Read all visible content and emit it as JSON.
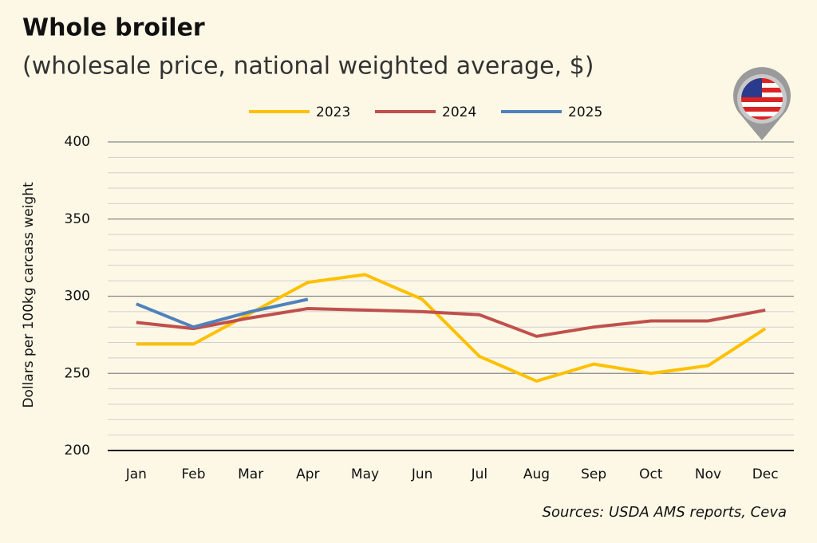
{
  "chart_data": {
    "type": "line",
    "title": "Whole broiler",
    "subtitle": "(wholesale price, national weighted average, $)",
    "y_label": "Dollars per 100kg carcass weight",
    "source": "Sources: USDA AMS reports, Ceva",
    "categories": [
      "Jan",
      "Feb",
      "Mar",
      "Apr",
      "May",
      "Jun",
      "Jul",
      "Aug",
      "Sep",
      "Oct",
      "Nov",
      "Dec"
    ],
    "series": [
      {
        "name": "2023",
        "color": "#ffc000",
        "values": [
          269,
          269,
          289,
          309,
          314,
          298,
          261,
          245,
          256,
          250,
          255,
          279
        ]
      },
      {
        "name": "2024",
        "color": "#c0504d",
        "values": [
          283,
          279,
          286,
          292,
          291,
          290,
          288,
          274,
          280,
          284,
          284,
          291
        ]
      },
      {
        "name": "2025",
        "color": "#4f81bd",
        "values": [
          295,
          280,
          290,
          298,
          null,
          null,
          null,
          null,
          null,
          null,
          null,
          null
        ]
      }
    ],
    "ylim": [
      200,
      400
    ],
    "yticks": [
      200,
      250,
      300,
      350,
      400
    ],
    "minor_yticks": [
      210,
      220,
      230,
      240,
      260,
      270,
      280,
      290,
      310,
      320,
      330,
      340,
      360,
      370,
      380,
      390
    ],
    "grid": true,
    "legend": "top"
  }
}
